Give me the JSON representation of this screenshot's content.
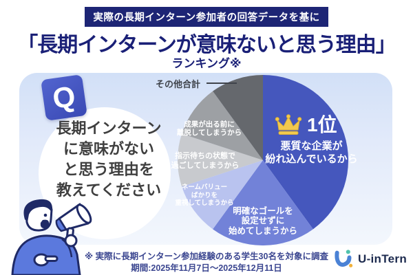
{
  "header": {
    "banner": "実際の長期インターン参加者の回答データを基に",
    "title": "「長期インターンが意味ないと思う理由」",
    "subtitle": "ランキング※"
  },
  "question": {
    "badge": "Q",
    "lines": [
      "長期インターン",
      "に意味がない",
      "と思う理由を",
      "教えてください"
    ]
  },
  "chart_data": {
    "type": "pie",
    "title": "長期インターンが意味ないと思う理由 ランキング",
    "start_angle_deg": 0,
    "clockwise": true,
    "legend_position": "on-slices",
    "total_respondents": 30,
    "slices": [
      {
        "rank": 1,
        "label": "悪質な企業が紛れ込んでいるから",
        "percent": 40,
        "color": "#4557bd"
      },
      {
        "rank": 2,
        "label": "明確なゴールを設定せずに始めてしまうから",
        "percent": 20,
        "color": "#7282d8"
      },
      {
        "rank": 3,
        "label": "ネームバリューばかりを重視してしまうから",
        "percent": 10,
        "color": "#b9c3ef"
      },
      {
        "rank": 4,
        "label": "指示待ちの状態で過ごしてしまうから",
        "percent": 10,
        "color": "#c8cace"
      },
      {
        "rank": 5,
        "label": "成果が出る前に離脱してしまうから",
        "percent": 10,
        "color": "#9da0a4"
      },
      {
        "rank": 6,
        "label": "その他合計",
        "percent": 10,
        "color": "#65686d"
      }
    ]
  },
  "pie_labels": {
    "other_total": "その他合計",
    "rank1": "1位",
    "winner": [
      "悪質な企業が",
      "紛れ込んでいるから"
    ],
    "seika": [
      "成果が出る前に",
      "離脱してしまうから"
    ],
    "shiji": [
      "指示待ちの状態で",
      "過ごしてしまうから"
    ],
    "name_value": [
      "ネームバリュー",
      "ばかりを",
      "重視してしまうから"
    ],
    "goal": [
      "明確なゴールを",
      "設定せずに",
      "始めてしまうから"
    ]
  },
  "footer": {
    "note": "※ 実際に長期インターン参加経験のある学生30名を対象に調査",
    "period": "期間:2025年11月7日〜2025年12月11日"
  },
  "logo": {
    "text": "U-inTern"
  },
  "colors": {
    "banner_bg": "#1d2575",
    "title_text": "#1a2077",
    "card_gradient_top": "#d2e0f7",
    "card_gradient_bottom": "#f3f7fd",
    "crown_gold": "#f2c94e",
    "footer_text": "#3b4690",
    "logo_blue": "#4b82d5",
    "logo_teal": "#52c3ad",
    "logo_orange": "#f1b13b"
  }
}
